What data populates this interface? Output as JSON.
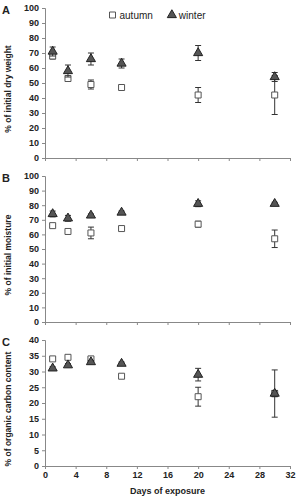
{
  "chart_data": [
    {
      "type": "scatter",
      "title": "A",
      "y_label": "% of initial dry weight",
      "x": [
        1,
        3,
        6,
        10,
        20,
        30
      ],
      "xlim": [
        0,
        32
      ],
      "xticks": [
        0,
        4,
        8,
        12,
        16,
        20,
        24,
        28,
        32
      ],
      "ylim": [
        0,
        100
      ],
      "yticks": [
        0,
        10,
        20,
        30,
        40,
        50,
        60,
        70,
        80,
        90,
        100
      ],
      "grid": false,
      "legend": "top",
      "tick_labels": "y",
      "series": [
        {
          "name": "autumn",
          "color": "#ffffff",
          "marker": "square",
          "values": [
            68,
            53,
            49,
            47,
            42,
            42
          ],
          "errors": [
            2,
            2,
            3,
            1,
            5,
            13
          ]
        },
        {
          "name": "winter",
          "color": "#555555",
          "marker": "triangle",
          "values": [
            71,
            58,
            66,
            63,
            70,
            54
          ],
          "errors": [
            3,
            4,
            4,
            3,
            5,
            3
          ]
        }
      ]
    },
    {
      "type": "scatter",
      "title": "B",
      "y_label": "% of initial moisture",
      "x": [
        1,
        3,
        6,
        10,
        20,
        30
      ],
      "xlim": [
        0,
        32
      ],
      "xticks": [
        0,
        4,
        8,
        12,
        16,
        20,
        24,
        28,
        32
      ],
      "ylim": [
        0,
        100
      ],
      "yticks": [
        0,
        10,
        20,
        30,
        40,
        50,
        60,
        70,
        80,
        90,
        100
      ],
      "grid": false,
      "tick_labels": "y",
      "series": [
        {
          "color": "#ffffff",
          "marker": "square",
          "values": [
            66,
            62,
            61,
            64,
            67,
            57
          ],
          "errors": [
            1,
            1,
            4,
            1,
            2,
            6
          ]
        },
        {
          "color": "#555555",
          "marker": "triangle",
          "values": [
            74,
            71,
            73,
            75,
            81,
            81
          ],
          "errors": [
            2,
            2,
            1,
            1,
            2,
            1
          ]
        }
      ]
    },
    {
      "type": "scatter",
      "title": "C",
      "y_label": "% of organic carbon content",
      "x_label": "Days of exposure",
      "x": [
        1,
        3,
        6,
        10,
        20,
        30
      ],
      "xlim": [
        0,
        32
      ],
      "xticks": [
        0,
        4,
        8,
        12,
        16,
        20,
        24,
        28,
        32
      ],
      "ylim": [
        0,
        40
      ],
      "yticks": [
        0,
        5,
        10,
        15,
        20,
        25,
        30,
        35,
        40
      ],
      "grid": false,
      "series": [
        {
          "color": "#ffffff",
          "marker": "square",
          "values": [
            34,
            34.5,
            34,
            28.5,
            22,
            23
          ],
          "errors": [
            0.5,
            0.5,
            0.5,
            0.5,
            3,
            7.5
          ]
        },
        {
          "color": "#555555",
          "marker": "triangle",
          "values": [
            31,
            32,
            33,
            32.5,
            29,
            23
          ],
          "errors": [
            0.5,
            0.5,
            0.5,
            0.5,
            2,
            1
          ]
        }
      ]
    }
  ]
}
